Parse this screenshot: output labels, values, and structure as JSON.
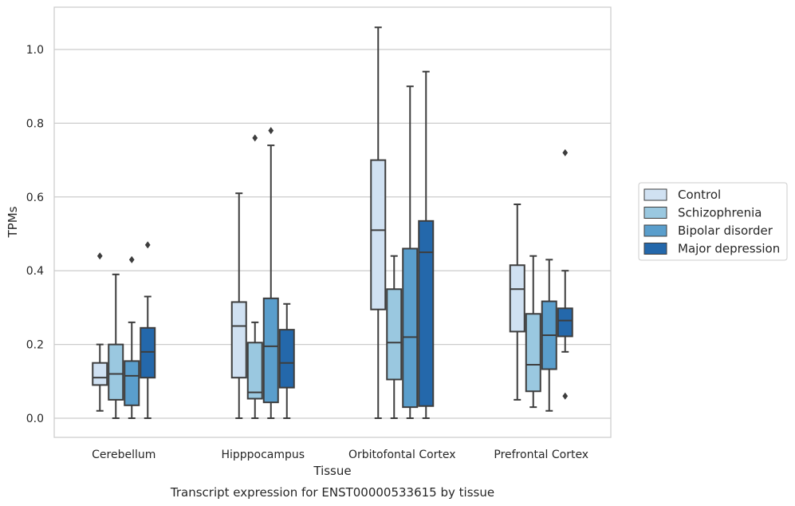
{
  "chart_data": {
    "type": "boxplot",
    "caption": "Transcript expression for ENST00000533615 by tissue",
    "xlabel": "Tissue",
    "ylabel": "TPMs",
    "ylim": [
      -0.05,
      1.12
    ],
    "yticks": [
      0.0,
      0.2,
      0.4,
      0.6,
      0.8,
      1.0
    ],
    "ytick_labels": [
      "0.0",
      "0.2",
      "0.4",
      "0.6",
      "0.8",
      "1.0"
    ],
    "grid": "horizontal",
    "legend_position": "right",
    "categories": [
      "Cerebellum",
      "Hipppocampus",
      "Orbitofontal Cortex",
      "Prefrontal Cortex"
    ],
    "series": [
      {
        "name": "Control",
        "color": "#d0e1f2",
        "boxes": [
          {
            "whislo": 0.02,
            "q1": 0.09,
            "med": 0.11,
            "q3": 0.15,
            "whishi": 0.2,
            "fliers": [
              0.44
            ]
          },
          {
            "whislo": 0.0,
            "q1": 0.11,
            "med": 0.25,
            "q3": 0.315,
            "whishi": 0.61,
            "fliers": []
          },
          {
            "whislo": 0.0,
            "q1": 0.295,
            "med": 0.51,
            "q3": 0.7,
            "whishi": 1.06,
            "fliers": []
          },
          {
            "whislo": 0.05,
            "q1": 0.235,
            "med": 0.35,
            "q3": 0.415,
            "whishi": 0.58,
            "fliers": []
          }
        ]
      },
      {
        "name": "Schizophrenia",
        "color": "#9ac8e0",
        "boxes": [
          {
            "whislo": 0.0,
            "q1": 0.05,
            "med": 0.12,
            "q3": 0.2,
            "whishi": 0.39,
            "fliers": []
          },
          {
            "whislo": 0.0,
            "q1": 0.053,
            "med": 0.07,
            "q3": 0.205,
            "whishi": 0.26,
            "fliers": [
              0.76
            ]
          },
          {
            "whislo": 0.0,
            "q1": 0.105,
            "med": 0.205,
            "q3": 0.35,
            "whishi": 0.44,
            "fliers": []
          },
          {
            "whislo": 0.03,
            "q1": 0.073,
            "med": 0.145,
            "q3": 0.283,
            "whishi": 0.44,
            "fliers": []
          }
        ]
      },
      {
        "name": "Bipolar disorder",
        "color": "#5a9ecc",
        "boxes": [
          {
            "whislo": 0.0,
            "q1": 0.035,
            "med": 0.115,
            "q3": 0.155,
            "whishi": 0.26,
            "fliers": [
              0.43
            ]
          },
          {
            "whislo": 0.0,
            "q1": 0.043,
            "med": 0.195,
            "q3": 0.325,
            "whishi": 0.74,
            "fliers": [
              0.78
            ]
          },
          {
            "whislo": 0.0,
            "q1": 0.03,
            "med": 0.22,
            "q3": 0.46,
            "whishi": 0.9,
            "fliers": []
          },
          {
            "whislo": 0.02,
            "q1": 0.133,
            "med": 0.225,
            "q3": 0.317,
            "whishi": 0.43,
            "fliers": []
          }
        ]
      },
      {
        "name": "Major depression",
        "color": "#2468ab",
        "boxes": [
          {
            "whislo": 0.0,
            "q1": 0.11,
            "med": 0.18,
            "q3": 0.245,
            "whishi": 0.33,
            "fliers": [
              0.47
            ]
          },
          {
            "whislo": 0.0,
            "q1": 0.083,
            "med": 0.15,
            "q3": 0.24,
            "whishi": 0.31,
            "fliers": []
          },
          {
            "whislo": 0.0,
            "q1": 0.033,
            "med": 0.45,
            "q3": 0.535,
            "whishi": 0.94,
            "fliers": []
          },
          {
            "whislo": 0.18,
            "q1": 0.222,
            "med": 0.265,
            "q3": 0.298,
            "whishi": 0.4,
            "fliers": [
              0.72,
              0.06
            ]
          }
        ]
      }
    ]
  }
}
